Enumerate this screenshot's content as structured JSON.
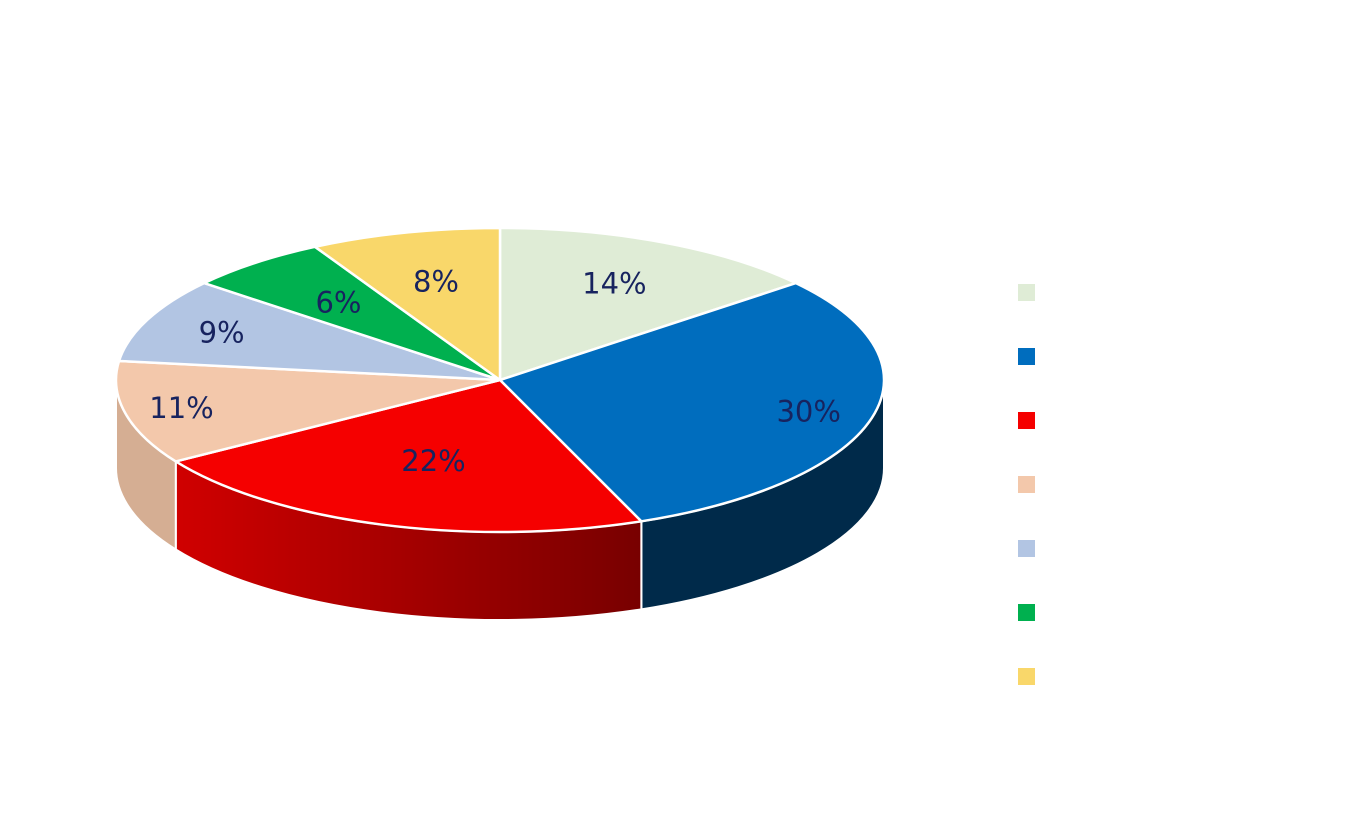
{
  "chart_data": {
    "type": "pie",
    "style": "3d",
    "title": "",
    "values": [
      14,
      30,
      22,
      11,
      9,
      6,
      8
    ],
    "data_labels": [
      "14%",
      "30%",
      "22%",
      "11%",
      "9%",
      "6%",
      "8%"
    ],
    "colors": [
      "#dfecd6",
      "#006dbe",
      "#f50000",
      "#f3c8ab",
      "#b2c5e3",
      "#00b04f",
      "#f9d76a"
    ],
    "side_colors": [
      "#c2ceb8",
      "#002a4a",
      "#b00000",
      "#d5ae93",
      "#96a8c3",
      "#007a37",
      "#d6b553"
    ],
    "legend_colors": [
      "#dfecd6",
      "#006dbe",
      "#f50000",
      "#f3c8ab",
      "#b2c5e3",
      "#00b04f",
      "#f9d76a"
    ],
    "legend_labels": [
      "",
      "",
      "",
      "",
      "",
      "",
      ""
    ],
    "legend_position": "right",
    "label_color": "#17235f"
  }
}
